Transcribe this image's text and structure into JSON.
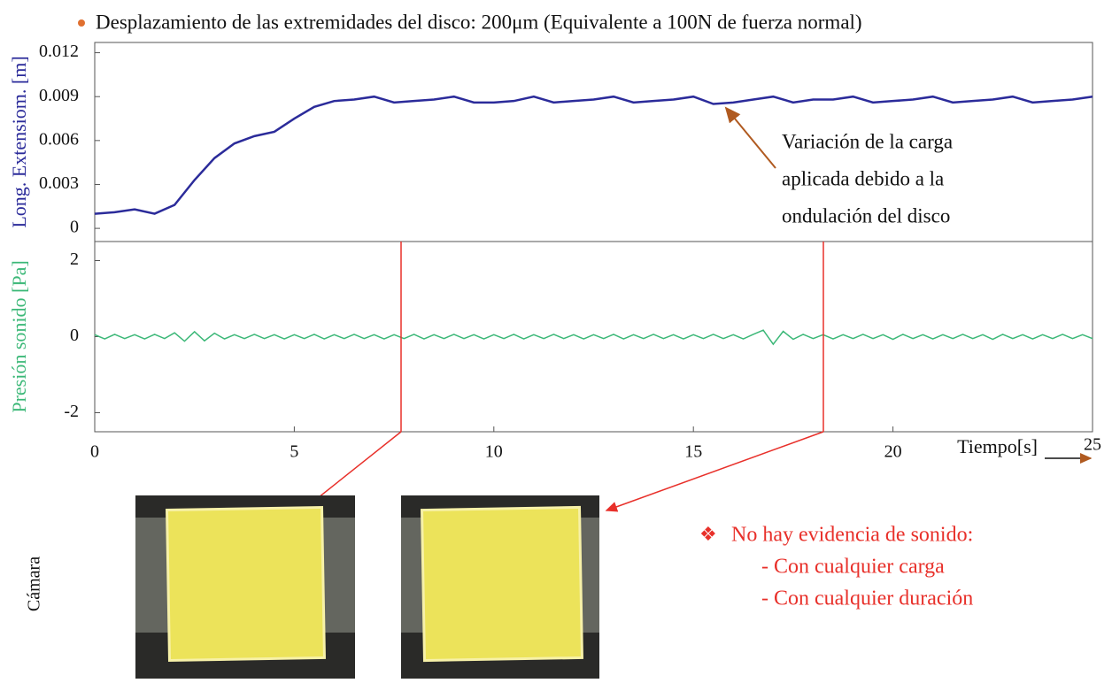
{
  "title": "Desplazamiento de las extremidades del disco: 200μm (Equivalente a 100N de fuerza normal)",
  "chart_data": [
    {
      "type": "line",
      "y_label": "Long. Extensiom. [m]",
      "annotation": [
        "Variación de la carga",
        "aplicada debido a la",
        "ondulación del disco"
      ],
      "x": [
        0,
        0.5,
        1,
        1.5,
        2,
        2.5,
        3,
        3.5,
        4,
        4.5,
        5,
        5.5,
        6,
        6.5,
        7,
        7.5,
        8,
        8.5,
        9,
        9.5,
        10,
        10.5,
        11,
        11.5,
        12,
        12.5,
        13,
        13.5,
        14,
        14.5,
        15,
        15.5,
        16,
        16.5,
        17,
        17.5,
        18,
        18.5,
        19,
        19.5,
        20,
        20.5,
        21,
        21.5,
        22,
        22.5,
        23,
        23.5,
        24,
        24.5,
        25
      ],
      "series": [
        {
          "name": "Long. Extensiom.",
          "color": "#2b2b9a",
          "values": [
            0.001,
            0.0011,
            0.0013,
            0.001,
            0.0016,
            0.0033,
            0.0048,
            0.0058,
            0.0063,
            0.0066,
            0.0075,
            0.0083,
            0.0087,
            0.0088,
            0.009,
            0.0086,
            0.0087,
            0.0088,
            0.009,
            0.0086,
            0.0086,
            0.0087,
            0.009,
            0.0086,
            0.0087,
            0.0088,
            0.009,
            0.0086,
            0.0087,
            0.0088,
            0.009,
            0.0085,
            0.0086,
            0.0088,
            0.009,
            0.0086,
            0.0088,
            0.0088,
            0.009,
            0.0086,
            0.0087,
            0.0088,
            0.009,
            0.0086,
            0.0087,
            0.0088,
            0.009,
            0.0086,
            0.0087,
            0.0088,
            0.009
          ]
        }
      ],
      "xlim": [
        0,
        25
      ],
      "ylim": [
        -0.0009,
        0.0127
      ],
      "yticks": [
        0,
        0.003,
        0.006,
        0.009,
        0.012
      ]
    },
    {
      "type": "line",
      "y_label": "Presión  sonido [Pa]",
      "x_label": "Tiempo[s]",
      "x": [
        0,
        0.25,
        0.5,
        0.75,
        1,
        1.25,
        1.5,
        1.75,
        2,
        2.25,
        2.5,
        2.75,
        3,
        3.25,
        3.5,
        3.75,
        4,
        4.25,
        4.5,
        4.75,
        5,
        5.25,
        5.5,
        5.75,
        6,
        6.25,
        6.5,
        6.75,
        7,
        7.25,
        7.5,
        7.75,
        8,
        8.25,
        8.5,
        8.75,
        9,
        9.25,
        9.5,
        9.75,
        10,
        10.25,
        10.5,
        10.75,
        11,
        11.25,
        11.5,
        11.75,
        12,
        12.25,
        12.5,
        12.75,
        13,
        13.25,
        13.5,
        13.75,
        14,
        14.25,
        14.5,
        14.75,
        15,
        15.25,
        15.5,
        15.75,
        16,
        16.25,
        16.5,
        16.75,
        17,
        17.25,
        17.5,
        17.75,
        18,
        18.25,
        18.5,
        18.75,
        19,
        19.25,
        19.5,
        19.75,
        20,
        20.25,
        20.5,
        20.75,
        21,
        21.25,
        21.5,
        21.75,
        22,
        22.25,
        22.5,
        22.75,
        23,
        23.25,
        23.5,
        23.75,
        24,
        24.25,
        24.5,
        24.75,
        25
      ],
      "series": [
        {
          "name": "Presión sonido",
          "color": "#3cb878",
          "values": [
            0.05,
            -0.06,
            0.06,
            -0.05,
            0.05,
            -0.06,
            0.06,
            -0.05,
            0.1,
            -0.12,
            0.13,
            -0.11,
            0.09,
            -0.06,
            0.05,
            -0.05,
            0.06,
            -0.05,
            0.05,
            -0.06,
            0.05,
            -0.05,
            0.06,
            -0.06,
            0.05,
            -0.05,
            0.06,
            -0.05,
            0.05,
            -0.06,
            0.05,
            -0.05,
            0.06,
            -0.06,
            0.05,
            -0.05,
            0.06,
            -0.05,
            0.05,
            -0.06,
            0.05,
            -0.05,
            0.06,
            -0.06,
            0.05,
            -0.05,
            0.06,
            -0.05,
            0.05,
            -0.06,
            0.05,
            -0.05,
            0.06,
            -0.06,
            0.05,
            -0.05,
            0.06,
            -0.05,
            0.05,
            -0.06,
            0.05,
            -0.05,
            0.06,
            -0.05,
            0.05,
            -0.06,
            0.06,
            0.17,
            -0.2,
            0.14,
            -0.07,
            0.06,
            -0.05,
            0.05,
            -0.06,
            0.05,
            -0.05,
            0.06,
            -0.05,
            0.05,
            -0.07,
            0.06,
            -0.05,
            0.05,
            -0.06,
            0.05,
            -0.05,
            0.06,
            -0.05,
            0.05,
            -0.07,
            0.06,
            -0.05,
            0.05,
            -0.06,
            0.05,
            -0.05,
            0.06,
            -0.05,
            0.05,
            -0.05
          ]
        }
      ],
      "xlim": [
        0,
        25
      ],
      "xticks": [
        0,
        5,
        10,
        15,
        20,
        25
      ],
      "ylim": [
        -2.5,
        2.5
      ],
      "yticks": [
        -2,
        0,
        2
      ]
    }
  ],
  "camera_label": "Cámara",
  "notes": [
    "No hay evidencia de sonido:",
    "- Con cualquier carga",
    "- Con cualquier duración"
  ]
}
